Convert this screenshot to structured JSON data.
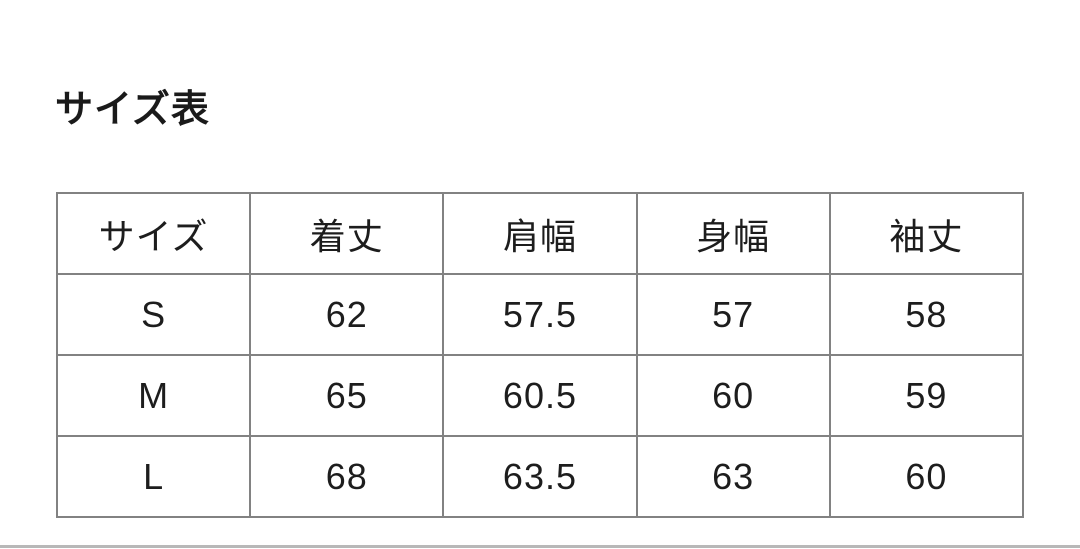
{
  "page": {
    "title": "サイズ表"
  },
  "chart_data": {
    "type": "table",
    "title": "サイズ表",
    "columns": [
      "サイズ",
      "着丈",
      "肩幅",
      "身幅",
      "袖丈"
    ],
    "rows": [
      [
        "S",
        "62",
        "57.5",
        "57",
        "58"
      ],
      [
        "M",
        "65",
        "60.5",
        "60",
        "59"
      ],
      [
        "L",
        "68",
        "63.5",
        "63",
        "60"
      ]
    ]
  },
  "colors": {
    "background": "#ffffff",
    "text": "#1d1d1d",
    "table_border": "#828282",
    "bottom_divider": "#b8b8b8"
  }
}
